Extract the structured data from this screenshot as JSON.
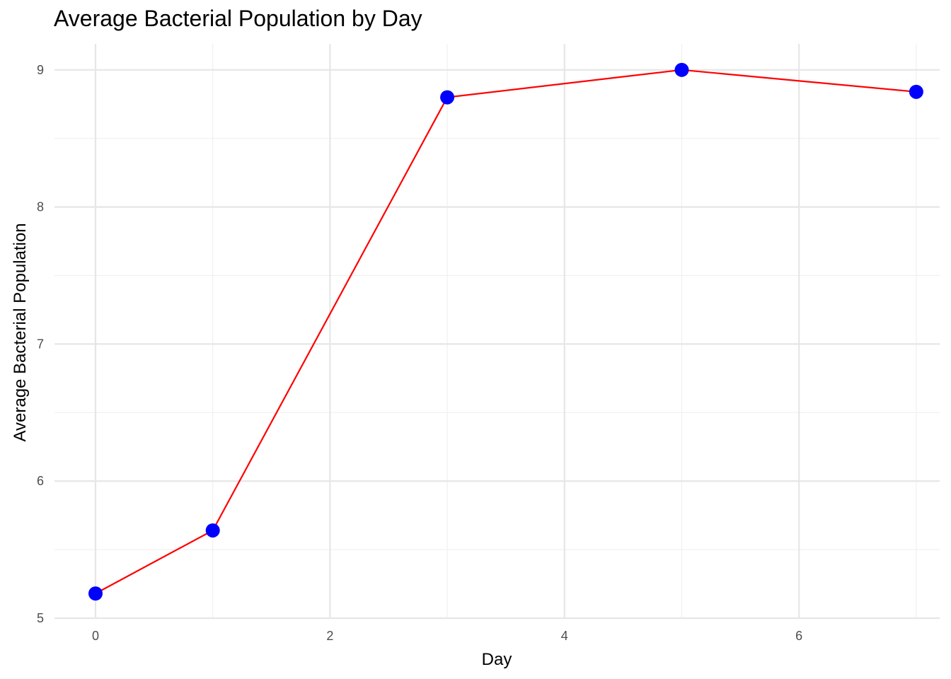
{
  "chart_data": {
    "type": "line",
    "title": "Average Bacterial Population by Day",
    "xlabel": "Day",
    "ylabel": "Average Bacterial Population",
    "x": [
      0,
      1,
      3,
      5,
      7
    ],
    "series": [
      {
        "values": [
          5.18,
          5.64,
          8.8,
          9.0,
          8.84
        ]
      }
    ],
    "xlim": [
      -0.35,
      7.2
    ],
    "ylim": [
      5.0,
      9.19
    ],
    "x_ticks": [
      0,
      2,
      4,
      6
    ],
    "x_minor_ticks": [
      1,
      3,
      5,
      7
    ],
    "y_ticks": [
      5,
      6,
      7,
      8,
      9
    ],
    "y_minor_ticks": [
      5.5,
      6.5,
      7.5,
      8.5
    ],
    "grid": true,
    "legend": "none",
    "colors": {
      "line": "#ff0000",
      "points": "#0000ff",
      "grid_major": "#e6e6e6",
      "grid_minor": "#f0f0f0",
      "tick_label": "#4d4d4d"
    }
  }
}
